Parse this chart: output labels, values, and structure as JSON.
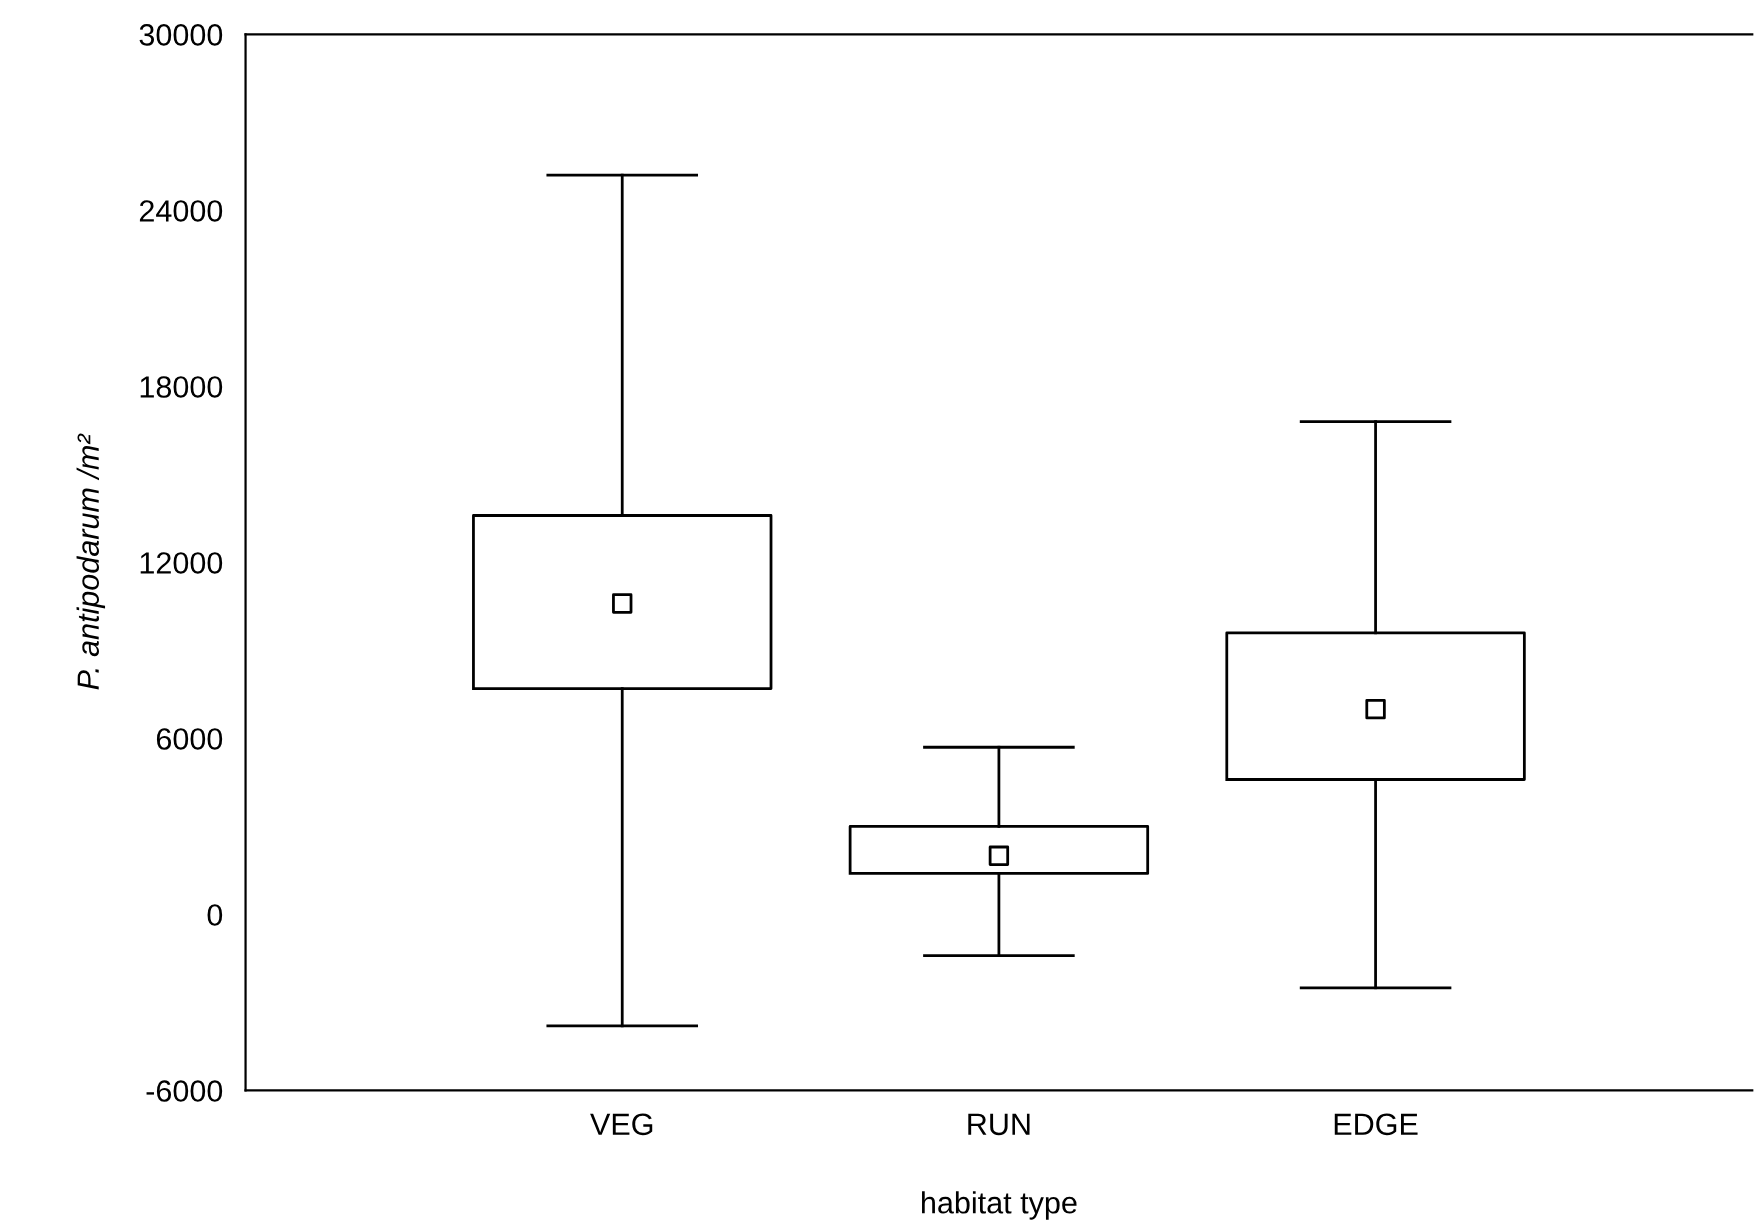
{
  "chart_data": {
    "type": "box",
    "xlabel": "habitat type",
    "ylabel": "P. antipodarum /m²",
    "categories": [
      "VEG",
      "RUN",
      "EDGE"
    ],
    "boxes": [
      {
        "low": -3800,
        "q1": 7700,
        "median": 10600,
        "q3": 13600,
        "high": 25200
      },
      {
        "low": -1400,
        "q1": 1400,
        "median": 2000,
        "q3": 3000,
        "high": 5700
      },
      {
        "low": -2500,
        "q1": 4600,
        "median": 7000,
        "q3": 9600,
        "high": 16800
      }
    ],
    "ylim": [
      -6000,
      30000
    ],
    "yticks": [
      -6000,
      0,
      6000,
      12000,
      18000,
      24000,
      30000
    ],
    "grid": false,
    "marker": "square"
  }
}
